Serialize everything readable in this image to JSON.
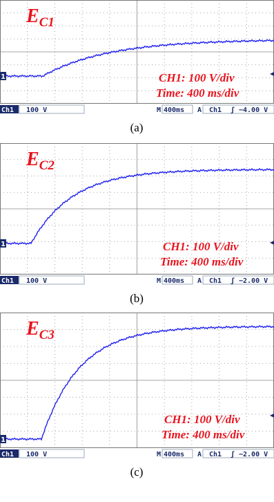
{
  "panels": [
    {
      "label": "E",
      "subscript": "C1",
      "scale": "CH1: 100 V/div",
      "time": "Time: 400 ms/div",
      "marker": "1",
      "status": {
        "channel": "Ch1",
        "volts": "100 V",
        "m": "M",
        "timebase": "400ms",
        "a": "A",
        "trig_channel": "Ch1",
        "trig_symbol": "ʃ",
        "trig_level": "−4.00 V"
      },
      "caption": "(a)"
    },
    {
      "label": "E",
      "subscript": "C2",
      "scale": "CH1: 100 V/div",
      "time": "Time: 400 ms/div",
      "marker": "1",
      "status": {
        "channel": "Ch1",
        "volts": "100 V",
        "m": "M",
        "timebase": "400ms",
        "a": "A",
        "trig_channel": "Ch1",
        "trig_symbol": "ʃ",
        "trig_level": "−2.00 V"
      },
      "caption": "(b)"
    },
    {
      "label": "E",
      "subscript": "C3",
      "scale": "CH1: 100 V/div",
      "time": "Time: 400 ms/div",
      "marker": "1",
      "status": {
        "channel": "Ch1",
        "volts": "100 V",
        "m": "M",
        "timebase": "400ms",
        "a": "A",
        "trig_channel": "Ch1",
        "trig_symbol": "ʃ",
        "trig_level": "−2.00 V"
      },
      "caption": "(c)"
    }
  ]
}
